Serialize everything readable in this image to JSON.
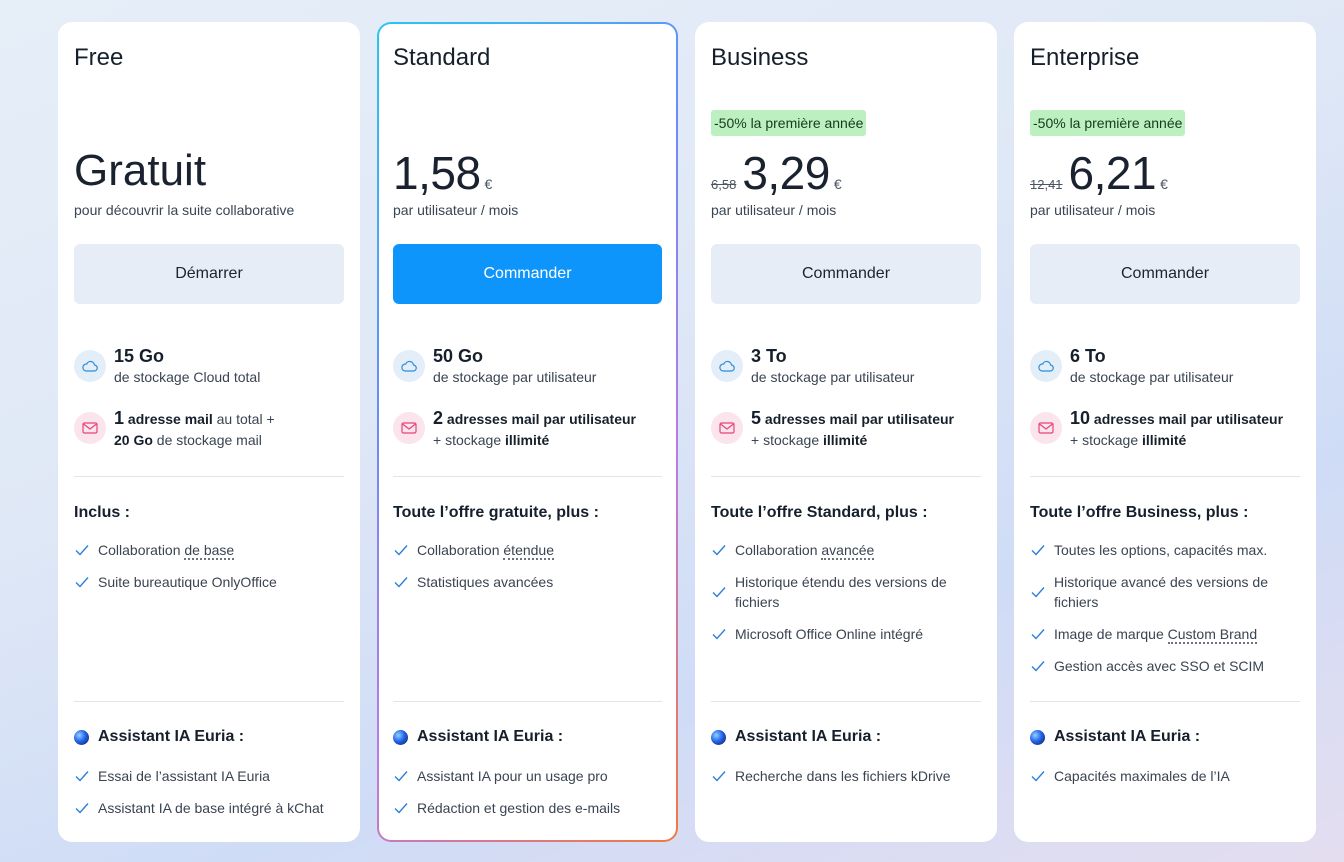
{
  "plans": [
    {
      "name": "Free",
      "promo": "",
      "old_price": "",
      "price": "Gratuit",
      "currency": "",
      "price_desc": "pour découvrir la suite collaborative",
      "cta": "Démarrer",
      "storage": {
        "amount": "15 Go",
        "desc": "de stockage Cloud total"
      },
      "mail": {
        "count": "1",
        "label": "adresse mail",
        "suffix": " au total +",
        "line2_strong": "20 Go",
        "line2": " de stockage mail"
      },
      "included_title": "Inclus :",
      "included": [
        {
          "text": "Collaboration ",
          "link": "de base"
        },
        {
          "text": "Suite bureautique OnlyOffice",
          "link": ""
        }
      ],
      "ai_title": "Assistant IA Euria :",
      "ai": [
        "Essai de l’assistant IA Euria",
        "Assistant IA de base intégré à kChat"
      ]
    },
    {
      "name": "Standard",
      "promo": "",
      "old_price": "",
      "price": "1,58",
      "currency": "€",
      "price_desc": "par utilisateur / mois",
      "cta": "Commander",
      "storage": {
        "amount": "50 Go",
        "desc": "de stockage par utilisateur"
      },
      "mail": {
        "count": "2",
        "label": "adresses mail par utilisateur",
        "suffix": "",
        "line2_prefix": "+ stockage ",
        "line2_strong": "illimité"
      },
      "included_title": "Toute l’offre gratuite, plus :",
      "included": [
        {
          "text": "Collaboration ",
          "link": "étendue"
        },
        {
          "text": "Statistiques avancées",
          "link": ""
        }
      ],
      "ai_title": "Assistant IA Euria :",
      "ai": [
        "Assistant IA pour un usage pro",
        "Rédaction et gestion des e-mails"
      ]
    },
    {
      "name": "Business",
      "promo": "-50% la première année",
      "old_price": "6,58",
      "price": "3,29",
      "currency": "€",
      "price_desc": "par utilisateur / mois",
      "cta": "Commander",
      "storage": {
        "amount": "3 To",
        "desc": "de stockage par utilisateur"
      },
      "mail": {
        "count": "5",
        "label": "adresses mail par utilisateur",
        "suffix": "",
        "line2_prefix": "+ stockage ",
        "line2_strong": "illimité"
      },
      "included_title": "Toute l’offre Standard, plus :",
      "included": [
        {
          "text": "Collaboration ",
          "link": "avancée"
        },
        {
          "text": "Historique étendu des versions de fichiers",
          "link": ""
        },
        {
          "text": "Microsoft Office Online intégré",
          "link": ""
        }
      ],
      "ai_title": "Assistant IA Euria :",
      "ai": [
        "Recherche dans les fichiers kDrive"
      ]
    },
    {
      "name": "Enterprise",
      "promo": "-50% la première année",
      "old_price": "12,41",
      "price": "6,21",
      "currency": "€",
      "price_desc": "par utilisateur / mois",
      "cta": "Commander",
      "storage": {
        "amount": "6 To",
        "desc": "de stockage par utilisateur"
      },
      "mail": {
        "count": "10",
        "label": "adresses mail par utilisateur",
        "suffix": "",
        "line2_prefix": "+ stockage ",
        "line2_strong": "illimité"
      },
      "included_title": "Toute l’offre Business, plus :",
      "included": [
        {
          "text": "Toutes les options, capacités max.",
          "link": ""
        },
        {
          "text": "Historique avancé des versions de fichiers",
          "link": ""
        },
        {
          "text": "Image de marque ",
          "link": "Custom Brand"
        },
        {
          "text": "Gestion accès avec SSO et SCIM",
          "link": ""
        }
      ],
      "ai_title": "Assistant IA Euria :",
      "ai": [
        "Capacités maximales de l’IA"
      ]
    }
  ],
  "colors": {
    "accent": "#0e95fb",
    "promo_bg": "#bdf0c0",
    "cta_bg": "#e6edf6"
  },
  "icons": {
    "storage": "cloud-icon",
    "mail": "mail-icon",
    "check": "check-icon",
    "ai": "euria-icon"
  }
}
